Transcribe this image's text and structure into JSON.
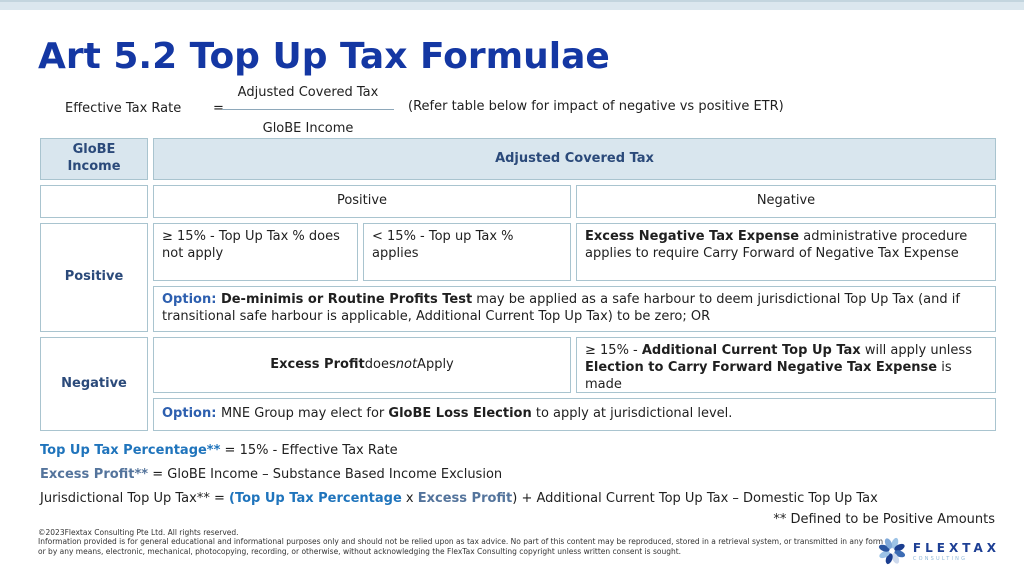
{
  "page": {
    "title": "Art 5.2 Top Up Tax Formulae"
  },
  "colors": {
    "title_blue": "#1437a3",
    "header_navy": "#2b4a7a",
    "header_bg": "#d9e6ee",
    "table_border": "#a9c4cf",
    "option_blue": "#2d5faf",
    "vivid_blue": "#1f74bc",
    "slate_blue": "#54749c",
    "top_strip": "#dbe7ee",
    "logo_navy": "#1d3f94",
    "logo_light_blue": "#8fb8d8"
  },
  "formula": {
    "lhs": "Effective Tax Rate",
    "equals": "=",
    "numerator": "Adjusted Covered Tax",
    "denominator": "GloBE Income",
    "note": "(Refer table below for impact of negative vs positive ETR)"
  },
  "table": {
    "corner_header": "GloBE Income",
    "main_header": "Adjusted Covered Tax",
    "positive_col_header": "Positive",
    "negative_col_header": "Negative",
    "positive_row_label": "Positive",
    "negative_row_label": "Negative",
    "cell_ge15": [
      {
        "t": "≥ 15% - Top Up Tax % does not apply"
      }
    ],
    "cell_lt15": [
      {
        "t": "< 15% - Top up Tax % applies"
      }
    ],
    "cell_excess_negative": [
      {
        "t": "Excess Negative Tax Expense",
        "b": true
      },
      {
        "t": " administrative procedure applies to require Carry Forward of Negative Tax Expense"
      }
    ],
    "positive_option": [
      {
        "t": "Option: ",
        "b": true,
        "cls": "option"
      },
      {
        "t": "De-minimis or Routine Profits Test",
        "b": true
      },
      {
        "t": " may be applied as a safe harbour to deem jurisdictional Top Up Tax (and if transitional safe harbour is applicable, Additional Current Top Up Tax) to be zero; OR"
      }
    ],
    "cell_excess_profit": [
      {
        "t": "Excess Profit",
        "b": true
      },
      {
        "t": " does "
      },
      {
        "t": "not",
        "i": true
      },
      {
        "t": " Apply"
      }
    ],
    "cell_additional_current": [
      {
        "t": "≥ 15% - "
      },
      {
        "t": "Additional Current Top Up Tax",
        "b": true
      },
      {
        "t": "  will apply unless "
      },
      {
        "t": "Election to Carry Forward Negative Tax Expense",
        "b": true
      },
      {
        "t": " is made"
      }
    ],
    "negative_option": [
      {
        "t": "Option: ",
        "b": true,
        "cls": "option"
      },
      {
        "t": "MNE Group may elect for "
      },
      {
        "t": "GloBE Loss Election",
        "b": true
      },
      {
        "t": " to apply at jurisdictional level."
      }
    ]
  },
  "bottom_formulas": {
    "line1": [
      {
        "t": "Top Up Tax Percentage**",
        "b": true,
        "cls": "vivid"
      },
      {
        "t": " = 15% - Effective Tax Rate"
      }
    ],
    "line2": [
      {
        "t": "Excess Profit**",
        "b": true,
        "cls": "slate"
      },
      {
        "t": " = GloBE Income – Substance Based Income Exclusion"
      }
    ],
    "line3": [
      {
        "t": "Jurisdictional Top Up Tax** = "
      },
      {
        "t": "(",
        "b": true,
        "cls": "vivid"
      },
      {
        "t": "Top Up Tax Percentage",
        "b": true,
        "cls": "vivid"
      },
      {
        "t": " x "
      },
      {
        "t": "Excess Profit",
        "b": true,
        "cls": "slate"
      },
      {
        "t": ") + Additional Current Top Up Tax – Domestic Top Up Tax"
      }
    ],
    "note": "** Defined to be Positive Amounts"
  },
  "footer": {
    "copyright": "©2023Flextax Consulting Pte Ltd. All rights reserved.",
    "disclaimer": "Information provided is for general educational and informational purposes only and should not be relied upon as tax advice. No part of this content may be reproduced, stored in a retrieval system, or transmitted in any form or by any means, electronic, mechanical, photocopying, recording, or otherwise, without acknowledging the FlexTax Consulting copyright unless written consent is sought.",
    "logo": {
      "icon": "pinwheel-logo-icon",
      "name": "FLEXTAX",
      "sub": "CONSULTING",
      "petal_colors": [
        "#9dc3e6",
        "#1b3e8f",
        "#3c6cb4",
        "#cdd9ec",
        "#1b3e8f",
        "#9dc3e6",
        "#2a55a0",
        "#7fa8d8"
      ]
    }
  }
}
